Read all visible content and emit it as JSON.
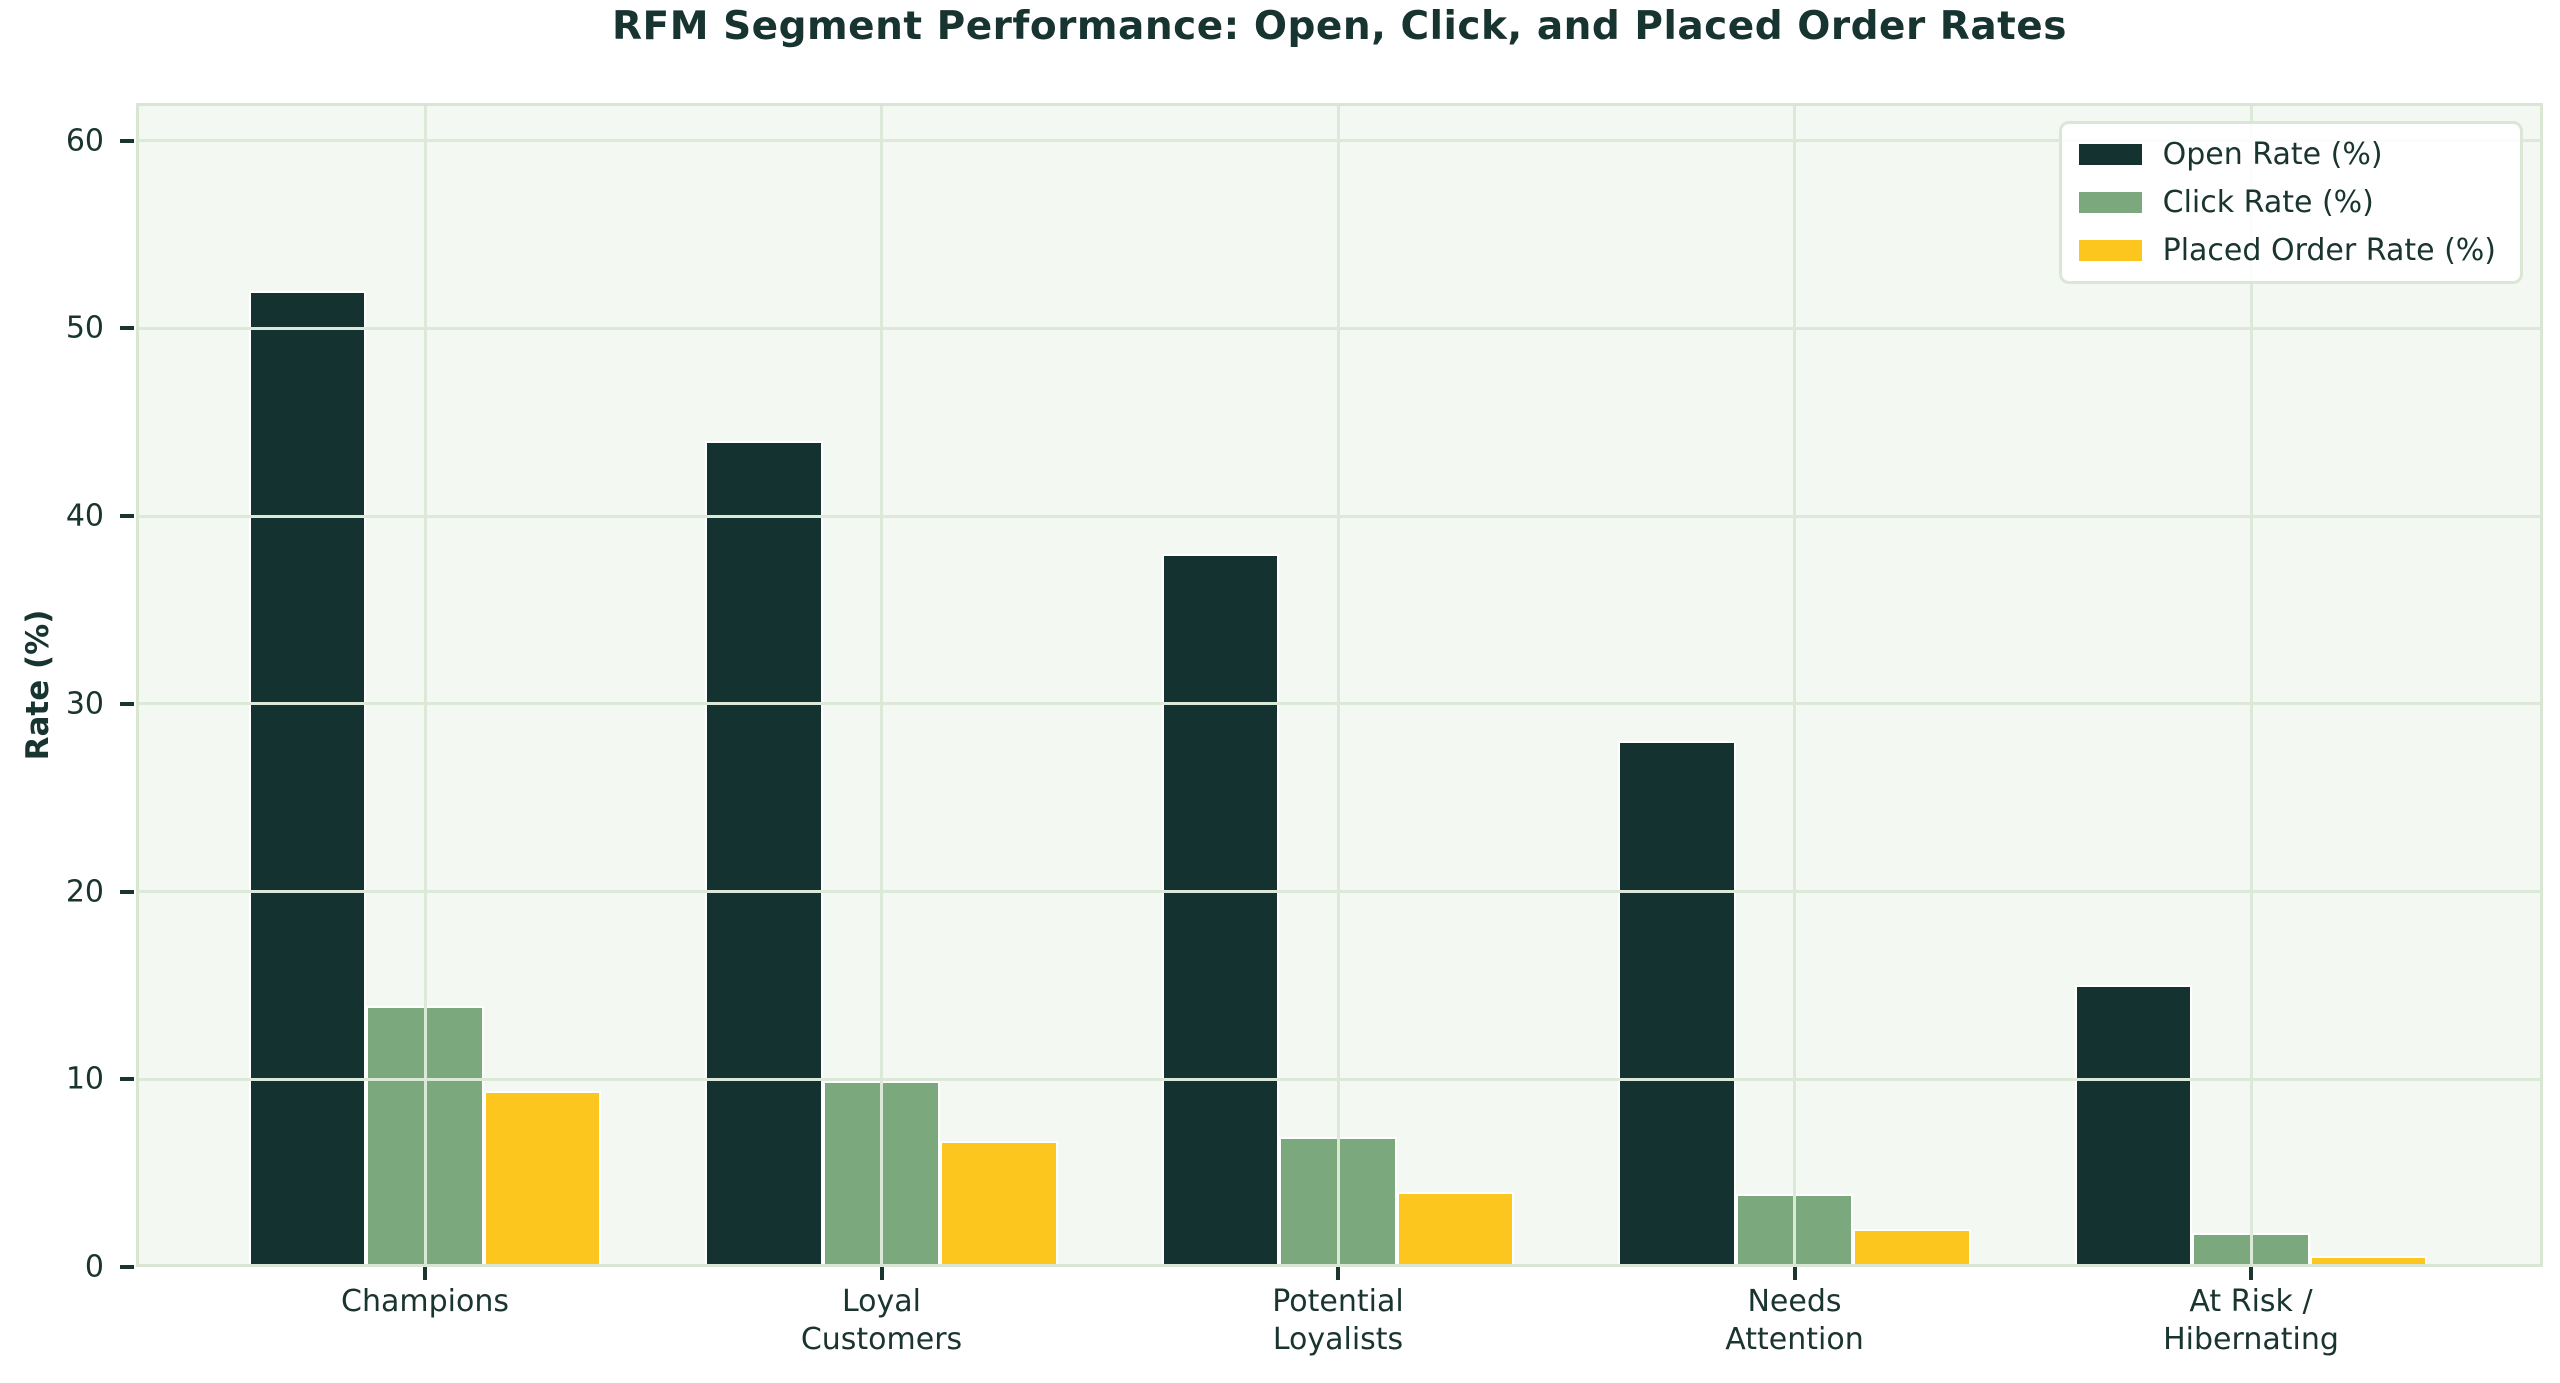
{
  "title": "RFM Segment Performance: Open, Click, and Placed Order Rates",
  "colors": {
    "figure_background": "#ffffff",
    "plot_background": "#f4f8f2",
    "gridline": "#dde9d8",
    "axis_frame": "#d9e6d4",
    "text": "#173430",
    "bar_edge": "#ffffff",
    "open_rate": "#143230",
    "click_rate": "#7ba87d",
    "placed_order_rate": "#fdc61e"
  },
  "chart_data": {
    "type": "bar",
    "title": "RFM Segment Performance: Open, Click, and Placed Order Rates",
    "xlabel": "",
    "ylabel": "Rate (%)",
    "categories": [
      "Champions",
      "Loyal\nCustomers",
      "Potential\nLoyalists",
      "Needs\nAttention",
      "At Risk /\nHibernating"
    ],
    "series": [
      {
        "name": "Open Rate (%)",
        "color": "#143230",
        "values": [
          52.0,
          44.0,
          38.0,
          28.0,
          15.0
        ]
      },
      {
        "name": "Click Rate (%)",
        "color": "#7ba87d",
        "values": [
          13.9,
          9.9,
          6.9,
          3.9,
          1.8
        ]
      },
      {
        "name": "Placed Order Rate (%)",
        "color": "#fdc61e",
        "values": [
          9.4,
          6.7,
          4.0,
          2.0,
          0.6
        ]
      }
    ],
    "yticks": [
      0,
      10,
      20,
      30,
      40,
      50,
      60
    ],
    "ylim": [
      0,
      62
    ],
    "grid": true,
    "gridlines_above_bars": true,
    "legend_position": "upper right"
  }
}
